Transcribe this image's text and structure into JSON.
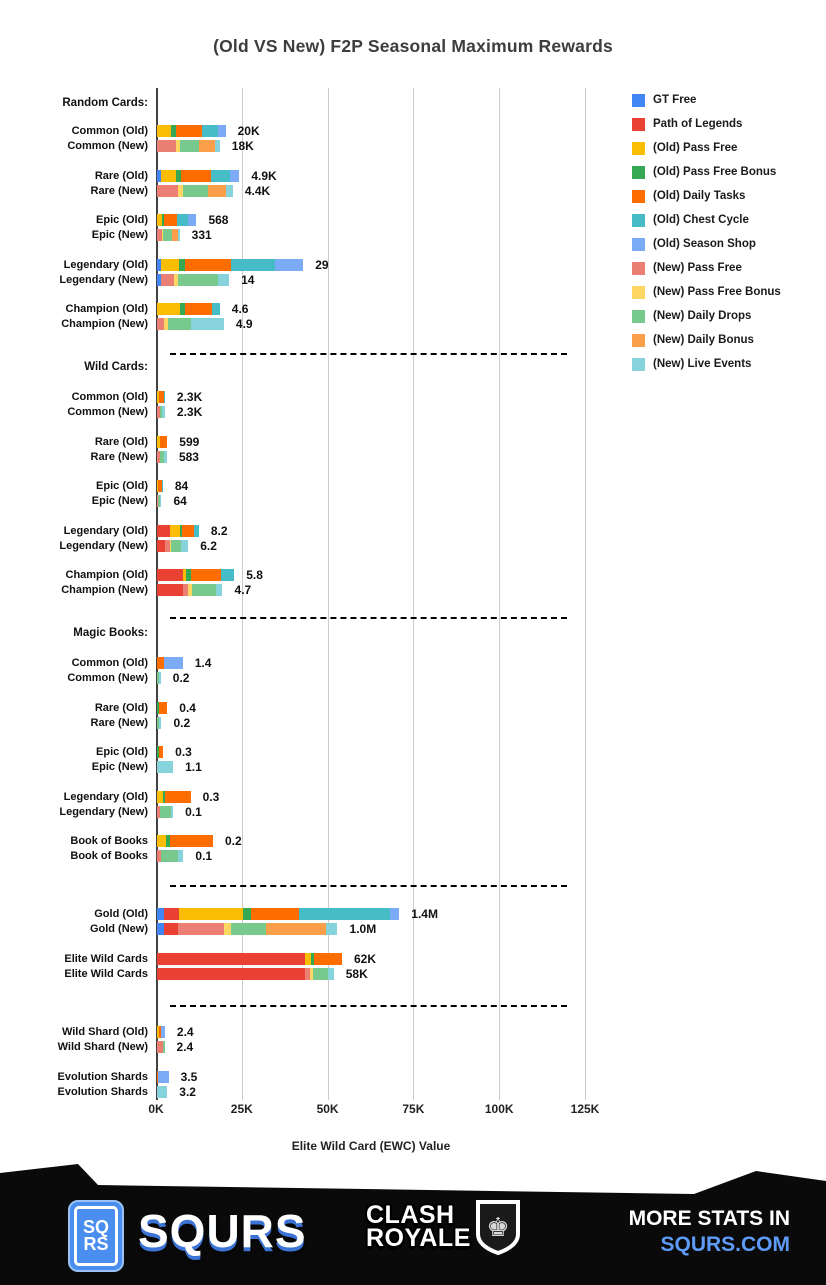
{
  "title": "(Old VS New) F2P Seasonal Maximum Rewards",
  "colors": {
    "gt_free": "#4285F4",
    "path_of_legends": "#E94235",
    "old_pass_free": "#FBBC04",
    "old_pass_free_bonus": "#34A853",
    "old_daily_tasks": "#FF6D01",
    "old_chest_cycle": "#46BDC6",
    "old_season_shop": "#7BAAF7",
    "new_pass_free": "#EC7F73",
    "new_pass_free_bonus": "#FDD663",
    "new_daily_drops": "#77C98D",
    "new_daily_bonus": "#FA9E49",
    "new_live_events": "#87D3DB"
  },
  "legend": [
    {
      "key": "gt_free",
      "label": "GT Free"
    },
    {
      "key": "path_of_legends",
      "label": "Path of Legends"
    },
    {
      "key": "old_pass_free",
      "label": "(Old) Pass Free"
    },
    {
      "key": "old_pass_free_bonus",
      "label": "(Old) Pass Free Bonus"
    },
    {
      "key": "old_daily_tasks",
      "label": "(Old) Daily Tasks"
    },
    {
      "key": "old_chest_cycle",
      "label": "(Old) Chest Cycle"
    },
    {
      "key": "old_season_shop",
      "label": "(Old) Season Shop"
    },
    {
      "key": "new_pass_free",
      "label": "(New) Pass Free"
    },
    {
      "key": "new_pass_free_bonus",
      "label": "(New) Pass Free Bonus"
    },
    {
      "key": "new_daily_drops",
      "label": "(New) Daily Drops"
    },
    {
      "key": "new_daily_bonus",
      "label": "(New) Daily Bonus"
    },
    {
      "key": "new_live_events",
      "label": "(New) Live Events"
    }
  ],
  "axis": {
    "ticks": [
      "0K",
      "25K",
      "50K",
      "75K",
      "100K",
      "125K"
    ],
    "max_k": 125,
    "label": "Elite Wild Card (EWC) Value"
  },
  "chart_data": {
    "type": "bar",
    "orientation": "horizontal",
    "x_unit": "Elite Wild Card (EWC) Value, thousands",
    "xlim": [
      0,
      125
    ],
    "grid": true,
    "legend_position": "right",
    "sections": [
      {
        "header": "Random Cards:",
        "rows": [
          {
            "label": "Common (Old)",
            "value": "20K",
            "segments": [
              [
                "old_pass_free",
                4.2
              ],
              [
                "old_pass_free_bonus",
                1.5
              ],
              [
                "old_daily_tasks",
                7.3
              ],
              [
                "old_chest_cycle",
                4.9
              ],
              [
                "old_season_shop",
                2.1
              ]
            ]
          },
          {
            "label": "Common (New)",
            "value": "18K",
            "segments": [
              [
                "new_pass_free",
                5.6
              ],
              [
                "new_pass_free_bonus",
                1.0
              ],
              [
                "new_daily_drops",
                5.8
              ],
              [
                "new_daily_bonus",
                4.4
              ],
              [
                "new_live_events",
                1.5
              ]
            ]
          },
          {
            "label": "Rare (Old)",
            "value": "4.9K",
            "segments": [
              [
                "gt_free",
                1.1
              ],
              [
                "old_pass_free",
                4.3
              ],
              [
                "old_pass_free_bonus",
                1.5
              ],
              [
                "old_daily_tasks",
                8.7
              ],
              [
                "old_chest_cycle",
                5.8
              ],
              [
                "old_season_shop",
                2.6
              ]
            ]
          },
          {
            "label": "Rare (New)",
            "value": "4.4K",
            "segments": [
              [
                "new_pass_free",
                6.1
              ],
              [
                "new_pass_free_bonus",
                1.5
              ],
              [
                "new_daily_drops",
                7.3
              ],
              [
                "new_daily_bonus",
                5.3
              ],
              [
                "new_live_events",
                1.9
              ]
            ]
          },
          {
            "label": "Epic (Old)",
            "value": "568",
            "segments": [
              [
                "old_pass_free",
                1.5
              ],
              [
                "old_pass_free_bonus",
                0.6
              ],
              [
                "old_daily_tasks",
                3.6
              ],
              [
                "old_chest_cycle",
                3.2
              ],
              [
                "old_season_shop",
                2.6
              ]
            ]
          },
          {
            "label": "Epic (New)",
            "value": "331",
            "segments": [
              [
                "new_pass_free",
                1.3
              ],
              [
                "new_pass_free_bonus",
                0.5
              ],
              [
                "new_daily_drops",
                2.6
              ],
              [
                "new_daily_bonus",
                1.7
              ],
              [
                "new_live_events",
                0.5
              ]
            ]
          },
          {
            "label": "Legendary (Old)",
            "value": "29",
            "segments": [
              [
                "gt_free",
                1.1
              ],
              [
                "old_pass_free",
                5.2
              ],
              [
                "old_pass_free_bonus",
                1.8
              ],
              [
                "old_daily_tasks",
                13.6
              ],
              [
                "old_chest_cycle",
                12.8
              ],
              [
                "old_season_shop",
                8.1
              ]
            ]
          },
          {
            "label": "Legendary (New)",
            "value": "14",
            "segments": [
              [
                "gt_free",
                1.1
              ],
              [
                "new_pass_free",
                3.9
              ],
              [
                "new_pass_free_bonus",
                1.2
              ],
              [
                "new_daily_drops",
                11.7
              ],
              [
                "new_live_events",
                3.1
              ]
            ]
          },
          {
            "label": "Champion (Old)",
            "value": "4.6",
            "segments": [
              [
                "old_pass_free",
                6.6
              ],
              [
                "old_pass_free_bonus",
                1.5
              ],
              [
                "old_daily_tasks",
                8.0
              ],
              [
                "old_chest_cycle",
                2.2
              ]
            ]
          },
          {
            "label": "Champion (New)",
            "value": "4.9",
            "segments": [
              [
                "new_pass_free",
                2.0
              ],
              [
                "new_pass_free_bonus",
                1.2
              ],
              [
                "new_daily_drops",
                6.6
              ],
              [
                "new_live_events",
                9.7
              ]
            ]
          }
        ]
      },
      {
        "header": "Wild Cards:",
        "rows": [
          {
            "label": "Common (Old)",
            "value": "2.3K",
            "segments": [
              [
                "old_pass_free",
                0.5
              ],
              [
                "old_daily_tasks",
                1.5
              ],
              [
                "old_chest_cycle",
                0.3
              ]
            ]
          },
          {
            "label": "Common (New)",
            "value": "2.3K",
            "segments": [
              [
                "new_pass_free",
                0.8
              ],
              [
                "new_daily_drops",
                0.7
              ],
              [
                "new_live_events",
                0.8
              ]
            ]
          },
          {
            "label": "Rare (Old)",
            "value": "599",
            "segments": [
              [
                "old_pass_free",
                0.8
              ],
              [
                "old_daily_tasks",
                2.2
              ]
            ]
          },
          {
            "label": "Rare (New)",
            "value": "583",
            "segments": [
              [
                "new_pass_free",
                1.0
              ],
              [
                "new_daily_drops",
                1.0
              ],
              [
                "new_live_events",
                0.9
              ]
            ]
          },
          {
            "label": "Epic (Old)",
            "value": "84",
            "segments": [
              [
                "old_pass_free",
                0.4
              ],
              [
                "old_daily_tasks",
                1.0
              ],
              [
                "old_chest_cycle",
                0.3
              ]
            ]
          },
          {
            "label": "Epic (New)",
            "value": "64",
            "segments": [
              [
                "new_pass_free",
                0.4
              ],
              [
                "new_daily_drops",
                0.5
              ],
              [
                "new_live_events",
                0.4
              ]
            ]
          },
          {
            "label": "Legendary (Old)",
            "value": "8.2",
            "segments": [
              [
                "path_of_legends",
                3.7
              ],
              [
                "old_pass_free",
                2.9
              ],
              [
                "old_pass_free_bonus",
                0.7
              ],
              [
                "old_daily_tasks",
                3.5
              ],
              [
                "old_chest_cycle",
                1.4
              ]
            ]
          },
          {
            "label": "Legendary (New)",
            "value": "6.2",
            "segments": [
              [
                "path_of_legends",
                2.4
              ],
              [
                "new_pass_free",
                1.3
              ],
              [
                "new_pass_free_bonus",
                0.5
              ],
              [
                "new_daily_drops",
                2.9
              ],
              [
                "new_live_events",
                2.0
              ]
            ]
          },
          {
            "label": "Champion (Old)",
            "value": "5.8",
            "segments": [
              [
                "path_of_legends",
                7.6
              ],
              [
                "old_pass_free",
                0.8
              ],
              [
                "old_pass_free_bonus",
                1.5
              ],
              [
                "old_daily_tasks",
                8.9
              ],
              [
                "old_chest_cycle",
                3.7
              ]
            ]
          },
          {
            "label": "Champion (New)",
            "value": "4.7",
            "segments": [
              [
                "path_of_legends",
                7.6
              ],
              [
                "new_pass_free",
                1.5
              ],
              [
                "new_pass_free_bonus",
                1.2
              ],
              [
                "new_daily_drops",
                6.8
              ],
              [
                "new_live_events",
                2.0
              ]
            ]
          }
        ]
      },
      {
        "header": "Magic Books:",
        "rows": [
          {
            "label": "Common (Old)",
            "value": "1.4",
            "segments": [
              [
                "old_daily_tasks",
                2.0
              ],
              [
                "old_season_shop",
                5.5
              ]
            ]
          },
          {
            "label": "Common (New)",
            "value": "0.2",
            "segments": [
              [
                "new_daily_drops",
                0.6
              ],
              [
                "new_live_events",
                0.5
              ]
            ]
          },
          {
            "label": "Rare (Old)",
            "value": "0.4",
            "segments": [
              [
                "old_pass_free_bonus",
                0.7
              ],
              [
                "old_daily_tasks",
                2.3
              ]
            ]
          },
          {
            "label": "Rare (New)",
            "value": "0.2",
            "segments": [
              [
                "new_daily_drops",
                0.6
              ],
              [
                "new_live_events",
                0.7
              ]
            ]
          },
          {
            "label": "Epic (Old)",
            "value": "0.3",
            "segments": [
              [
                "old_pass_free_bonus",
                0.5
              ],
              [
                "old_daily_tasks",
                1.3
              ]
            ]
          },
          {
            "label": "Epic (New)",
            "value": "1.1",
            "segments": [
              [
                "new_live_events",
                4.7
              ]
            ]
          },
          {
            "label": "Legendary (Old)",
            "value": "0.3",
            "segments": [
              [
                "old_pass_free",
                1.7
              ],
              [
                "old_pass_free_bonus",
                0.7
              ],
              [
                "old_daily_tasks",
                7.4
              ]
            ]
          },
          {
            "label": "Legendary (New)",
            "value": "0.1",
            "segments": [
              [
                "new_pass_free",
                0.8
              ],
              [
                "new_daily_drops",
                3.2
              ],
              [
                "new_live_events",
                0.7
              ]
            ]
          },
          {
            "label": "Book of Books",
            "value": "0.2",
            "segments": [
              [
                "old_pass_free",
                2.7
              ],
              [
                "old_pass_free_bonus",
                1.0
              ],
              [
                "old_daily_tasks",
                12.6
              ]
            ]
          },
          {
            "label": "Book of Books",
            "value": "0.1",
            "segments": [
              [
                "new_pass_free",
                1.1
              ],
              [
                "new_daily_drops",
                4.9
              ],
              [
                "new_live_events",
                1.7
              ]
            ]
          }
        ]
      },
      {
        "header": "",
        "rows": [
          {
            "label": "Gold (Old)",
            "value": "1.4M",
            "segments": [
              [
                "gt_free",
                2.1
              ],
              [
                "path_of_legends",
                4.2
              ],
              [
                "old_pass_free",
                18.7
              ],
              [
                "old_pass_free_bonus",
                2.3
              ],
              [
                "old_daily_tasks",
                14.2
              ],
              [
                "old_chest_cycle",
                26.4
              ],
              [
                "old_season_shop",
                2.7
              ]
            ]
          },
          {
            "label": "Gold (New)",
            "value": "1.0M",
            "segments": [
              [
                "gt_free",
                2.1
              ],
              [
                "path_of_legends",
                3.9
              ],
              [
                "new_pass_free",
                13.4
              ],
              [
                "new_pass_free_bonus",
                2.1
              ],
              [
                "new_daily_drops",
                10.3
              ],
              [
                "new_daily_bonus",
                17.5
              ],
              [
                "new_live_events",
                3.3
              ]
            ]
          },
          {
            "label": "Elite Wild Cards",
            "value": "62K",
            "segments": [
              [
                "path_of_legends",
                43.1
              ],
              [
                "old_pass_free",
                1.7
              ],
              [
                "old_pass_free_bonus",
                1.1
              ],
              [
                "old_daily_tasks",
                8.0
              ]
            ]
          },
          {
            "label": "Elite Wild Cards",
            "value": "58K",
            "segments": [
              [
                "path_of_legends",
                43.2
              ],
              [
                "new_pass_free",
                1.5
              ],
              [
                "new_pass_free_bonus",
                0.8
              ],
              [
                "new_daily_drops",
                4.3
              ],
              [
                "new_live_events",
                1.7
              ]
            ]
          }
        ]
      },
      {
        "header": "",
        "rows": [
          {
            "label": "Wild Shard (Old)",
            "value": "2.4",
            "segments": [
              [
                "old_pass_free",
                0.6
              ],
              [
                "old_daily_tasks",
                0.7
              ],
              [
                "old_season_shop",
                1.0
              ]
            ]
          },
          {
            "label": "Wild Shard (New)",
            "value": "2.4",
            "segments": [
              [
                "new_pass_free",
                1.8
              ],
              [
                "new_daily_drops",
                0.4
              ]
            ]
          },
          {
            "label": "Evolution Shards",
            "value": "3.5",
            "segments": [
              [
                "old_daily_tasks",
                0.3
              ],
              [
                "old_season_shop",
                3.1
              ]
            ]
          },
          {
            "label": "Evolution Shards",
            "value": "3.2",
            "segments": [
              [
                "new_live_events",
                3.0
              ]
            ]
          }
        ]
      }
    ]
  },
  "footer": {
    "sqrs_badge_line1": "SQ",
    "sqrs_badge_line2": "RS",
    "sqrs_name": "SQURS",
    "clash_line1": "CLASH",
    "clash_line2": "ROYALE",
    "more_line1": "MORE STATS IN",
    "more_line2": "SQURS.COM",
    "accent_blue": "#5e9bf7",
    "banner_color": "#0a0a0a"
  }
}
